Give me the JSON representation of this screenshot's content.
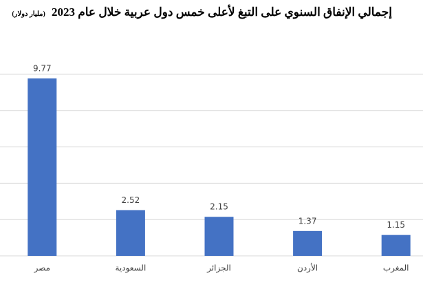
{
  "chart_data": {
    "type": "bar",
    "title": "إجمالي الإنفاق السنوي على التبغ لأعلى خمس دول عربية خلال عام 2023",
    "subtitle": "(مليار دولار)",
    "categories": [
      "مصر",
      "السعودية",
      "الجزائر",
      "الأردن",
      "المغرب"
    ],
    "values": [
      9.77,
      2.52,
      2.15,
      1.37,
      1.15
    ],
    "color": "#4472c4",
    "ylim": [
      0,
      10
    ],
    "yticks": [
      0,
      2,
      4,
      6,
      8,
      10
    ],
    "grid": true
  }
}
